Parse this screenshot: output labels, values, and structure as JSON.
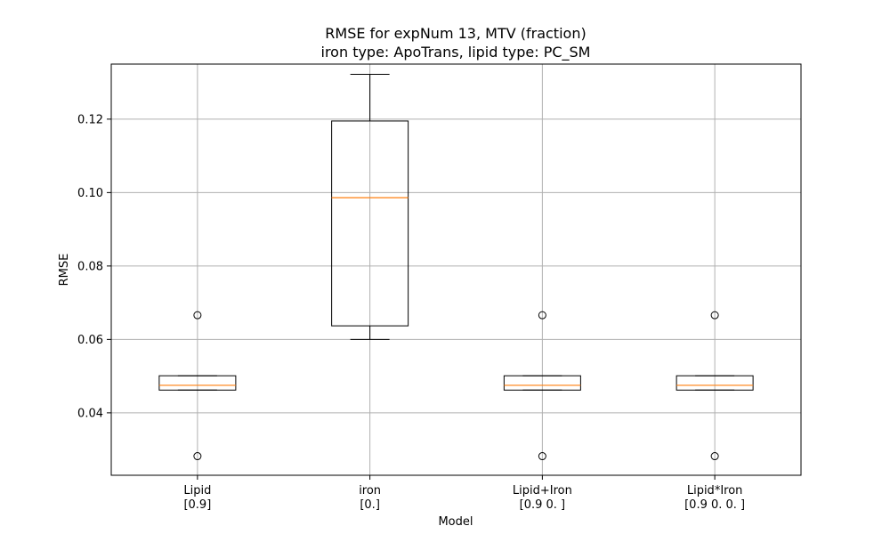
{
  "chart_data": {
    "type": "boxplot",
    "title": "RMSE for expNum 13, MTV (fraction)",
    "subtitle": "iron type: ApoTrans, lipid type: PC_SM",
    "xlabel": "Model",
    "ylabel": "RMSE",
    "ylim": [
      0.023,
      0.135
    ],
    "yticks": [
      0.04,
      0.06,
      0.08,
      0.1,
      0.12
    ],
    "ytick_labels": [
      "0.04",
      "0.06",
      "0.08",
      "0.10",
      "0.12"
    ],
    "grid": true,
    "categories": [
      [
        "Lipid",
        "[0.9]"
      ],
      [
        "iron",
        "[0.]"
      ],
      [
        "Lipid+Iron",
        "[0.9 0. ]"
      ],
      [
        "Lipid*Iron",
        "[0.9 0.  0. ]"
      ]
    ],
    "boxes": [
      {
        "whisker_low": 0.0462,
        "q1": 0.0462,
        "median": 0.0475,
        "q3": 0.0501,
        "whisker_high": 0.0501,
        "outliers": [
          0.0666,
          0.0282
        ]
      },
      {
        "whisker_low": 0.06,
        "q1": 0.0637,
        "median": 0.0986,
        "q3": 0.1195,
        "whisker_high": 0.1322,
        "outliers": []
      },
      {
        "whisker_low": 0.0462,
        "q1": 0.0462,
        "median": 0.0475,
        "q3": 0.0501,
        "whisker_high": 0.0501,
        "outliers": [
          0.0666,
          0.0282
        ]
      },
      {
        "whisker_low": 0.0462,
        "q1": 0.0462,
        "median": 0.0475,
        "q3": 0.0501,
        "whisker_high": 0.0501,
        "outliers": [
          0.0666,
          0.0282
        ]
      }
    ],
    "colors": {
      "box": "#000000",
      "median": "#ff7f0e",
      "grid": "#b0b0b0",
      "outlier": "#000000"
    }
  }
}
